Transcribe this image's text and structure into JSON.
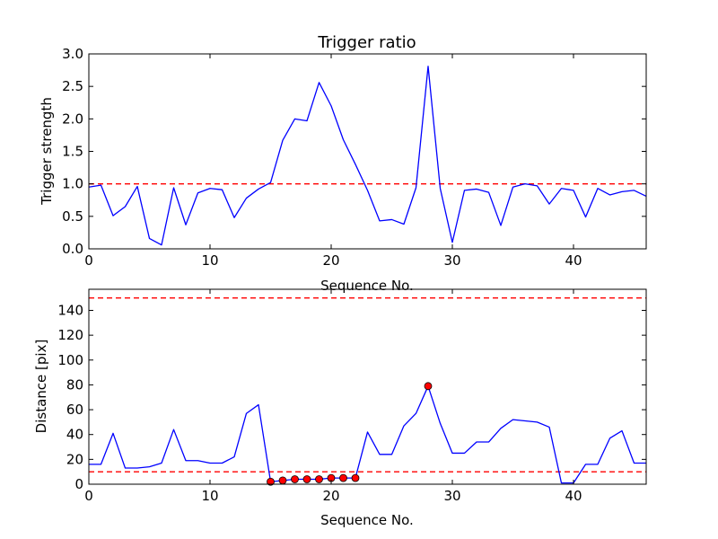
{
  "chart_data": [
    {
      "type": "line",
      "title": "Trigger ratio",
      "xlabel": "Sequence No.",
      "ylabel": "Trigger strength",
      "xlim": [
        0,
        46
      ],
      "ylim": [
        0,
        3.0
      ],
      "xticks": [
        "0",
        "10",
        "20",
        "30",
        "40"
      ],
      "yticks": [
        "0.0",
        "0.5",
        "1.0",
        "1.5",
        "2.0",
        "2.5",
        "3.0"
      ],
      "grid": false,
      "line_color": "#0000ff",
      "threshold_color": "#ff0000",
      "thresholds": [
        1.0
      ],
      "series": [
        {
          "x": [
            0,
            1,
            2,
            3,
            4,
            5,
            6,
            7,
            8,
            9,
            10,
            11,
            12,
            13,
            14,
            15,
            16,
            17,
            18,
            19,
            20,
            21,
            22,
            23,
            24,
            25,
            26,
            27,
            28,
            29,
            30,
            31,
            32,
            33,
            34,
            35,
            36,
            37,
            38,
            39,
            40,
            41,
            42,
            43,
            44,
            45,
            46
          ],
          "values": [
            0.95,
            0.98,
            0.51,
            0.65,
            0.96,
            0.16,
            0.06,
            0.94,
            0.37,
            0.86,
            0.93,
            0.91,
            0.48,
            0.78,
            0.92,
            1.02,
            1.67,
            2.0,
            1.97,
            2.56,
            2.2,
            1.68,
            1.3,
            0.9,
            0.43,
            0.45,
            0.38,
            0.94,
            2.81,
            0.93,
            0.1,
            0.9,
            0.92,
            0.87,
            0.36,
            0.95,
            1.0,
            0.97,
            0.69,
            0.93,
            0.9,
            0.49,
            0.93,
            0.83,
            0.88,
            0.9,
            0.81
          ]
        }
      ]
    },
    {
      "type": "line",
      "title": "",
      "xlabel": "Sequence No.",
      "ylabel": "Distance [pix]",
      "xlim": [
        0,
        46
      ],
      "ylim": [
        0,
        157
      ],
      "xticks": [
        "0",
        "10",
        "20",
        "30",
        "40"
      ],
      "yticks": [
        "0",
        "20",
        "40",
        "60",
        "80",
        "100",
        "120",
        "140"
      ],
      "grid": false,
      "line_color": "#0000ff",
      "threshold_color": "#ff0000",
      "marker_color": "#ff0000",
      "thresholds": [
        10,
        150
      ],
      "series": [
        {
          "x": [
            0,
            1,
            2,
            3,
            4,
            5,
            6,
            7,
            8,
            9,
            10,
            11,
            12,
            13,
            14,
            15,
            16,
            17,
            18,
            19,
            20,
            21,
            22,
            23,
            24,
            25,
            26,
            27,
            28,
            29,
            30,
            31,
            32,
            33,
            34,
            35,
            36,
            37,
            38,
            39,
            40,
            41,
            42,
            43,
            44,
            45,
            46
          ],
          "values": [
            16,
            16,
            41,
            13,
            13,
            14,
            17,
            44,
            19,
            19,
            17,
            17,
            22,
            57,
            64,
            2,
            3,
            4,
            4,
            4,
            5,
            5,
            5,
            42,
            24,
            24,
            47,
            57,
            79,
            49,
            25,
            25,
            34,
            34,
            45,
            52,
            51,
            50,
            46,
            1,
            1,
            16,
            16,
            37,
            43,
            17,
            17
          ]
        }
      ],
      "markers": {
        "x": [
          15,
          16,
          17,
          18,
          19,
          20,
          21,
          22,
          28
        ],
        "values": [
          2,
          3,
          4,
          4,
          4,
          5,
          5,
          5,
          79
        ]
      }
    }
  ]
}
